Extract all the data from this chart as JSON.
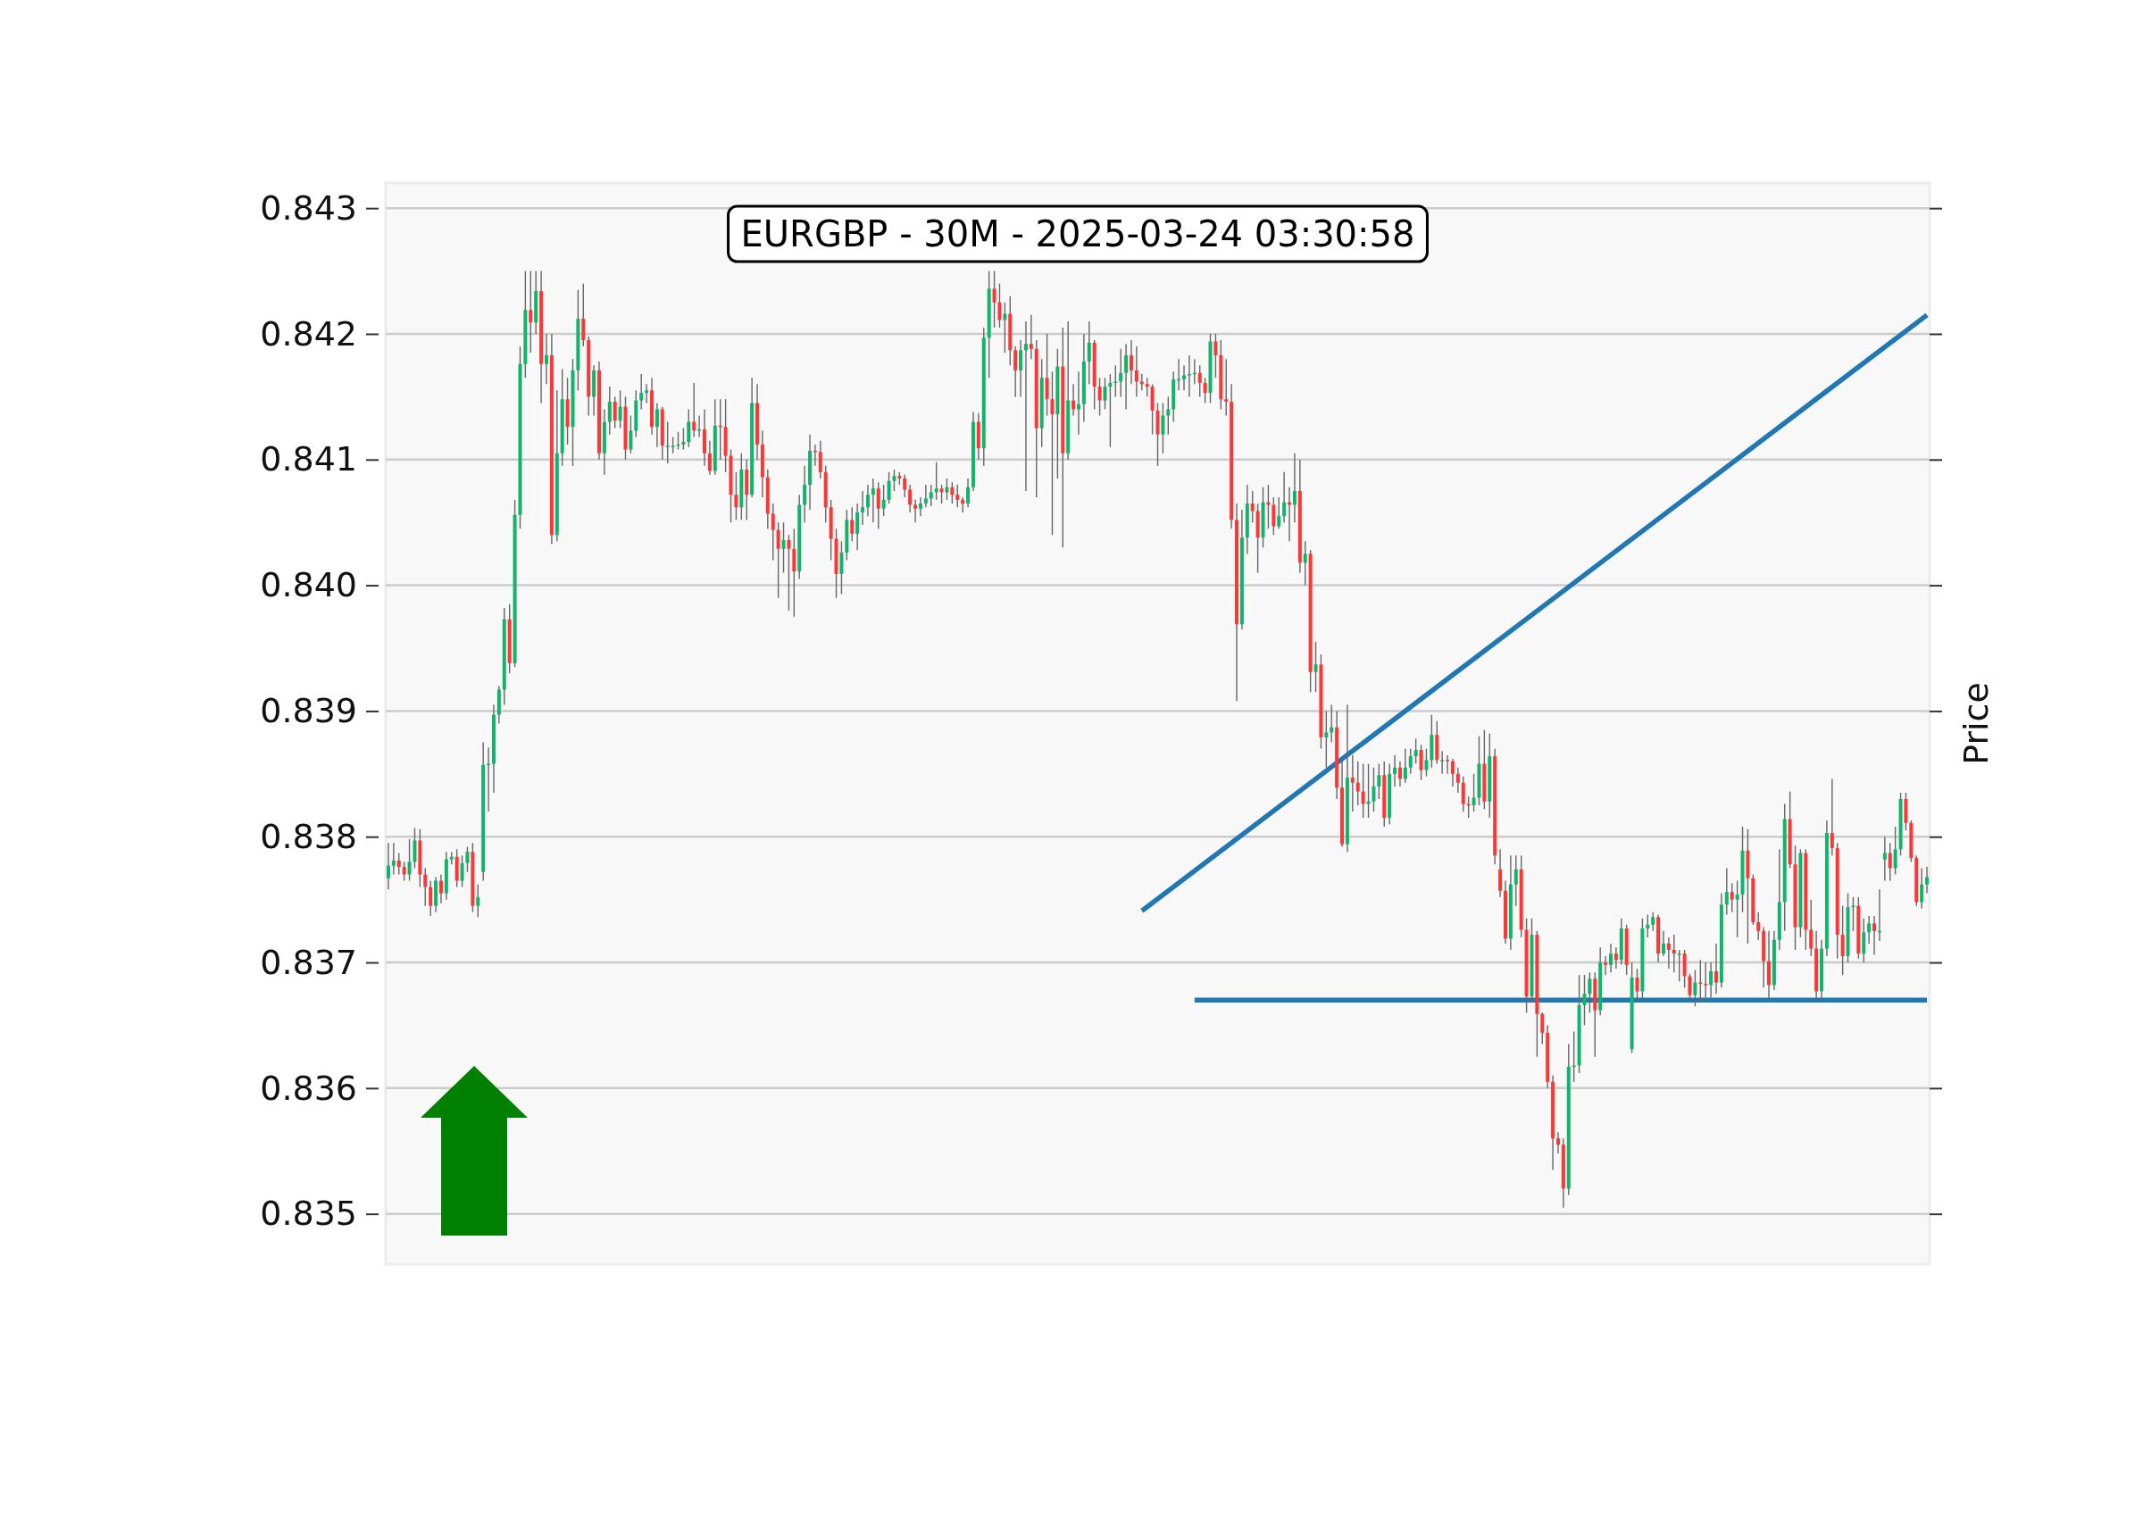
{
  "chart_data": {
    "type": "candlestick",
    "title": "EURGBP - 30M - 2025-03-24 03:30:58",
    "ylabel": "Price",
    "categories": [
      null,
      null,
      null,
      null,
      null,
      null,
      null,
      null,
      null,
      null,
      null,
      null,
      null,
      null,
      null,
      null,
      null,
      null,
      null,
      null,
      null,
      null,
      null,
      null,
      null,
      null,
      null,
      null,
      null,
      null,
      null,
      null,
      null,
      null,
      null,
      null,
      null,
      null,
      null,
      null,
      null,
      null,
      null,
      null,
      null,
      null,
      null,
      null,
      null,
      null,
      null,
      null,
      null,
      null,
      null,
      null,
      null,
      null,
      null,
      null,
      null,
      null,
      null,
      null,
      null,
      null,
      null,
      null,
      null,
      null,
      null,
      null,
      null,
      null,
      null,
      null,
      null,
      null,
      null,
      null,
      null,
      null,
      null,
      null,
      null,
      null,
      null,
      null,
      null,
      null,
      null,
      null,
      null,
      null,
      null,
      null,
      null,
      null,
      null,
      null,
      null,
      null,
      null,
      null,
      null,
      null,
      null,
      null,
      null,
      null,
      null,
      null,
      null,
      null,
      null,
      null,
      null,
      null,
      null,
      null,
      null,
      null,
      null,
      null,
      null,
      null,
      null,
      null,
      null,
      null,
      null,
      null,
      null,
      null,
      null,
      null,
      null,
      null,
      null,
      null,
      null,
      null,
      null,
      null,
      null,
      null,
      null,
      null,
      null,
      null,
      null,
      null,
      null,
      null,
      null,
      null,
      null,
      null,
      null,
      null,
      null,
      null,
      null,
      null,
      null,
      null,
      null,
      null,
      null,
      null,
      null,
      null,
      null,
      null,
      null,
      null,
      null,
      null,
      null,
      null,
      null,
      null,
      null,
      null,
      null,
      null,
      null,
      null,
      null,
      null,
      null,
      null,
      null,
      null,
      null,
      null,
      null,
      null,
      null,
      null,
      null,
      null,
      null,
      null,
      null,
      null,
      null,
      null,
      null,
      null,
      null,
      null,
      null,
      null,
      null,
      null,
      null,
      null,
      null,
      null,
      null,
      null,
      null,
      null,
      null,
      null,
      null,
      null,
      null,
      null,
      null,
      null,
      null,
      null,
      null,
      null,
      null,
      null,
      null,
      null,
      null,
      null,
      null,
      null,
      null,
      null,
      null,
      null,
      null,
      null,
      null,
      null,
      null,
      null,
      null,
      null,
      null,
      null,
      null,
      null,
      null,
      null,
      null,
      null,
      null,
      null,
      null,
      null,
      null,
      null,
      null,
      null,
      null,
      null,
      null,
      null,
      null,
      null,
      null,
      null,
      null,
      null,
      null,
      null,
      null,
      null,
      null,
      null,
      null,
      null,
      null,
      null,
      null
    ],
    "ohlc": [
      [
        0.83767,
        0.83795,
        0.83758,
        0.83777
      ],
      [
        0.83777,
        0.83795,
        0.8377,
        0.83781
      ],
      [
        0.83781,
        0.83787,
        0.8377,
        0.83776
      ],
      [
        0.83776,
        0.8378,
        0.83765,
        0.8377
      ],
      [
        0.8377,
        0.83798,
        0.83765,
        0.8378
      ],
      [
        0.8378,
        0.83807,
        0.83775,
        0.83797
      ],
      [
        0.83797,
        0.83806,
        0.8376,
        0.8377
      ],
      [
        0.8377,
        0.83775,
        0.83745,
        0.8376
      ],
      [
        0.8376,
        0.83765,
        0.83737,
        0.83745
      ],
      [
        0.83745,
        0.83768,
        0.8374,
        0.83765
      ],
      [
        0.83765,
        0.8377,
        0.83747,
        0.83755
      ],
      [
        0.83755,
        0.83788,
        0.8375,
        0.83782
      ],
      [
        0.83782,
        0.83788,
        0.83778,
        0.83784
      ],
      [
        0.83784,
        0.8379,
        0.8376,
        0.83765
      ],
      [
        0.83765,
        0.83785,
        0.8376,
        0.83779
      ],
      [
        0.83779,
        0.83792,
        0.83772,
        0.83788
      ],
      [
        0.83788,
        0.83795,
        0.8374,
        0.83745
      ],
      [
        0.83745,
        0.83762,
        0.83736,
        0.83752
      ],
      [
        0.83772,
        0.83875,
        0.83765,
        0.83857
      ],
      [
        0.83857,
        0.83871,
        0.8382,
        0.83858
      ],
      [
        0.83858,
        0.83905,
        0.83835,
        0.83897
      ],
      [
        0.83897,
        0.8392,
        0.8389,
        0.83917
      ],
      [
        0.83917,
        0.83982,
        0.83905,
        0.83973
      ],
      [
        0.83973,
        0.83985,
        0.8393,
        0.83938
      ],
      [
        0.83938,
        0.84068,
        0.83935,
        0.84056
      ],
      [
        0.84056,
        0.8419,
        0.84045,
        0.84176
      ],
      [
        0.84176,
        0.8425,
        0.84165,
        0.84219
      ],
      [
        0.84219,
        0.8425,
        0.84185,
        0.84209
      ],
      [
        0.84209,
        0.8425,
        0.842,
        0.84234
      ],
      [
        0.84234,
        0.8425,
        0.84145,
        0.84176
      ],
      [
        0.84176,
        0.842,
        0.8416,
        0.84183
      ],
      [
        0.84183,
        0.842,
        0.84033,
        0.8404
      ],
      [
        0.8404,
        0.84155,
        0.84035,
        0.84105
      ],
      [
        0.84105,
        0.84172,
        0.84095,
        0.84148
      ],
      [
        0.84148,
        0.84165,
        0.84112,
        0.84126
      ],
      [
        0.84126,
        0.8418,
        0.84095,
        0.84171
      ],
      [
        0.84171,
        0.84235,
        0.84155,
        0.84212
      ],
      [
        0.84212,
        0.8424,
        0.8419,
        0.84195
      ],
      [
        0.84195,
        0.84198,
        0.84135,
        0.8415
      ],
      [
        0.8415,
        0.84175,
        0.84135,
        0.84171
      ],
      [
        0.84171,
        0.84178,
        0.841,
        0.84105
      ],
      [
        0.84105,
        0.8414,
        0.84088,
        0.8413
      ],
      [
        0.8413,
        0.84158,
        0.8412,
        0.84146
      ],
      [
        0.84146,
        0.8415,
        0.84125,
        0.84131
      ],
      [
        0.84131,
        0.84155,
        0.84125,
        0.84142
      ],
      [
        0.84142,
        0.8415,
        0.841,
        0.84108
      ],
      [
        0.84108,
        0.84135,
        0.84105,
        0.84123
      ],
      [
        0.84123,
        0.84155,
        0.84118,
        0.84147
      ],
      [
        0.84147,
        0.84168,
        0.8414,
        0.84153
      ],
      [
        0.84153,
        0.8416,
        0.84145,
        0.84155
      ],
      [
        0.84155,
        0.84165,
        0.8412,
        0.84126
      ],
      [
        0.84126,
        0.84145,
        0.8411,
        0.8414
      ],
      [
        0.8414,
        0.84142,
        0.841,
        0.84111
      ],
      [
        0.84111,
        0.8413,
        0.84097,
        0.84111
      ],
      [
        0.84111,
        0.84118,
        0.84105,
        0.84111
      ],
      [
        0.84111,
        0.84122,
        0.84108,
        0.84112
      ],
      [
        0.84112,
        0.84125,
        0.84108,
        0.84114
      ],
      [
        0.84114,
        0.8414,
        0.8411,
        0.8413
      ],
      [
        0.8413,
        0.84161,
        0.84118,
        0.84123
      ],
      [
        0.84123,
        0.84135,
        0.84118,
        0.84124
      ],
      [
        0.84124,
        0.8414,
        0.84095,
        0.84105
      ],
      [
        0.84105,
        0.84115,
        0.84088,
        0.84091
      ],
      [
        0.84091,
        0.84148,
        0.84088,
        0.84127
      ],
      [
        0.84127,
        0.84148,
        0.841,
        0.84126
      ],
      [
        0.84126,
        0.84148,
        0.8409,
        0.84103
      ],
      [
        0.84103,
        0.84108,
        0.8405,
        0.84072
      ],
      [
        0.84072,
        0.8409,
        0.84052,
        0.84062
      ],
      [
        0.84062,
        0.84105,
        0.84052,
        0.84092
      ],
      [
        0.84092,
        0.841,
        0.84052,
        0.84072
      ],
      [
        0.84072,
        0.84165,
        0.8407,
        0.84145
      ],
      [
        0.84145,
        0.8416,
        0.841,
        0.84112
      ],
      [
        0.84112,
        0.84123,
        0.8407,
        0.84086
      ],
      [
        0.84086,
        0.84092,
        0.84045,
        0.84057
      ],
      [
        0.84057,
        0.84065,
        0.8402,
        0.84044
      ],
      [
        0.84044,
        0.8405,
        0.8399,
        0.84029
      ],
      [
        0.84029,
        0.8405,
        0.8401,
        0.84036
      ],
      [
        0.84036,
        0.8404,
        0.8398,
        0.84029
      ],
      [
        0.84029,
        0.84045,
        0.83975,
        0.84011
      ],
      [
        0.84011,
        0.84072,
        0.84005,
        0.84064
      ],
      [
        0.84064,
        0.84095,
        0.8405,
        0.8408
      ],
      [
        0.8408,
        0.8412,
        0.8406,
        0.84107
      ],
      [
        0.84107,
        0.84112,
        0.84095,
        0.84106
      ],
      [
        0.84106,
        0.84115,
        0.84085,
        0.8409
      ],
      [
        0.8409,
        0.84095,
        0.8405,
        0.84062
      ],
      [
        0.84062,
        0.84068,
        0.8402,
        0.84037
      ],
      [
        0.84037,
        0.84045,
        0.8399,
        0.84009
      ],
      [
        0.84009,
        0.84035,
        0.83993,
        0.84026
      ],
      [
        0.84026,
        0.8406,
        0.8402,
        0.84052
      ],
      [
        0.84052,
        0.84062,
        0.84035,
        0.84041
      ],
      [
        0.84041,
        0.84065,
        0.84028,
        0.84058
      ],
      [
        0.84058,
        0.84075,
        0.84048,
        0.84062
      ],
      [
        0.84062,
        0.8408,
        0.84055,
        0.84072
      ],
      [
        0.84072,
        0.84085,
        0.8405,
        0.84077
      ],
      [
        0.84077,
        0.84082,
        0.84045,
        0.84061
      ],
      [
        0.84061,
        0.8408,
        0.84055,
        0.84068
      ],
      [
        0.84068,
        0.8409,
        0.84065,
        0.84083
      ],
      [
        0.84083,
        0.84092,
        0.84075,
        0.84087
      ],
      [
        0.84087,
        0.8409,
        0.8408,
        0.84085
      ],
      [
        0.84085,
        0.84088,
        0.8407,
        0.84076
      ],
      [
        0.84076,
        0.8408,
        0.84058,
        0.84064
      ],
      [
        0.84064,
        0.84068,
        0.8405,
        0.84061
      ],
      [
        0.84061,
        0.8407,
        0.84055,
        0.84065
      ],
      [
        0.84065,
        0.8408,
        0.84062,
        0.84069
      ],
      [
        0.84069,
        0.8408,
        0.84063,
        0.84074
      ],
      [
        0.84074,
        0.84098,
        0.84068,
        0.84077
      ],
      [
        0.84077,
        0.8408,
        0.84065,
        0.84074
      ],
      [
        0.84074,
        0.84085,
        0.84068,
        0.84078
      ],
      [
        0.84078,
        0.84082,
        0.84065,
        0.84072
      ],
      [
        0.84072,
        0.8408,
        0.84062,
        0.84068
      ],
      [
        0.84068,
        0.8407,
        0.84058,
        0.84065
      ],
      [
        0.84065,
        0.84085,
        0.84062,
        0.84078
      ],
      [
        0.84078,
        0.84138,
        0.84075,
        0.8413
      ],
      [
        0.8413,
        0.84137,
        0.841,
        0.84109
      ],
      [
        0.84109,
        0.84205,
        0.84095,
        0.84197
      ],
      [
        0.84197,
        0.8425,
        0.84165,
        0.84236
      ],
      [
        0.84236,
        0.8425,
        0.84205,
        0.84225
      ],
      [
        0.84225,
        0.8424,
        0.84205,
        0.84211
      ],
      [
        0.84211,
        0.84225,
        0.84185,
        0.84216
      ],
      [
        0.84216,
        0.8423,
        0.84175,
        0.84187
      ],
      [
        0.84187,
        0.8419,
        0.8415,
        0.84171
      ],
      [
        0.84171,
        0.84195,
        0.8415,
        0.84187
      ],
      [
        0.84187,
        0.8421,
        0.84075,
        0.84192
      ],
      [
        0.84192,
        0.84215,
        0.8418,
        0.84188
      ],
      [
        0.84188,
        0.84195,
        0.8407,
        0.84125
      ],
      [
        0.84125,
        0.8418,
        0.8411,
        0.84165
      ],
      [
        0.84165,
        0.842,
        0.84135,
        0.84148
      ],
      [
        0.84148,
        0.8417,
        0.8404,
        0.84136
      ],
      [
        0.84136,
        0.84188,
        0.84085,
        0.84174
      ],
      [
        0.84174,
        0.84205,
        0.8403,
        0.84105
      ],
      [
        0.84105,
        0.8421,
        0.841,
        0.84147
      ],
      [
        0.84147,
        0.8416,
        0.84135,
        0.8414
      ],
      [
        0.8414,
        0.8417,
        0.8412,
        0.84144
      ],
      [
        0.84144,
        0.842,
        0.8413,
        0.84178
      ],
      [
        0.84178,
        0.8421,
        0.8416,
        0.84193
      ],
      [
        0.84193,
        0.84195,
        0.8414,
        0.84158
      ],
      [
        0.84158,
        0.84165,
        0.84135,
        0.84147
      ],
      [
        0.84147,
        0.84165,
        0.8414,
        0.84158
      ],
      [
        0.84158,
        0.84168,
        0.8411,
        0.84161
      ],
      [
        0.84161,
        0.84175,
        0.8415,
        0.84162
      ],
      [
        0.84162,
        0.84188,
        0.8415,
        0.84169
      ],
      [
        0.84169,
        0.84192,
        0.8414,
        0.84183
      ],
      [
        0.84183,
        0.84195,
        0.8416,
        0.84171
      ],
      [
        0.84171,
        0.8419,
        0.8415,
        0.84162
      ],
      [
        0.84162,
        0.84168,
        0.84155,
        0.8416
      ],
      [
        0.8416,
        0.84165,
        0.8415,
        0.84158
      ],
      [
        0.84158,
        0.8416,
        0.8412,
        0.84139
      ],
      [
        0.84139,
        0.84145,
        0.84095,
        0.8412
      ],
      [
        0.8412,
        0.84145,
        0.84105,
        0.84135
      ],
      [
        0.84135,
        0.8415,
        0.8412,
        0.8414
      ],
      [
        0.8414,
        0.8417,
        0.8413,
        0.84164
      ],
      [
        0.84164,
        0.8418,
        0.84155,
        0.84164
      ],
      [
        0.84164,
        0.84175,
        0.84155,
        0.84167
      ],
      [
        0.84167,
        0.84183,
        0.8415,
        0.84168
      ],
      [
        0.84168,
        0.8418,
        0.8416,
        0.84169
      ],
      [
        0.84169,
        0.84175,
        0.8415,
        0.84161
      ],
      [
        0.84161,
        0.84165,
        0.84145,
        0.84153
      ],
      [
        0.84153,
        0.842,
        0.84145,
        0.84194
      ],
      [
        0.84194,
        0.842,
        0.84165,
        0.84183
      ],
      [
        0.84183,
        0.84195,
        0.8414,
        0.84148
      ],
      [
        0.84148,
        0.8418,
        0.84135,
        0.84146
      ],
      [
        0.84146,
        0.8416,
        0.84045,
        0.84052
      ],
      [
        0.84052,
        0.84065,
        0.83908,
        0.83969
      ],
      [
        0.83969,
        0.8406,
        0.83965,
        0.84038
      ],
      [
        0.84038,
        0.8408,
        0.84025,
        0.84065
      ],
      [
        0.84065,
        0.84075,
        0.8405,
        0.84059
      ],
      [
        0.84059,
        0.84065,
        0.8401,
        0.84038
      ],
      [
        0.84038,
        0.84078,
        0.8403,
        0.84066
      ],
      [
        0.84066,
        0.8408,
        0.84045,
        0.84064
      ],
      [
        0.84064,
        0.8407,
        0.8404,
        0.84047
      ],
      [
        0.84047,
        0.8407,
        0.84045,
        0.84055
      ],
      [
        0.84055,
        0.8409,
        0.8405,
        0.84066
      ],
      [
        0.84066,
        0.84078,
        0.84035,
        0.84064
      ],
      [
        0.84064,
        0.84105,
        0.8405,
        0.84075
      ],
      [
        0.84075,
        0.841,
        0.8401,
        0.84018
      ],
      [
        0.84018,
        0.84035,
        0.84,
        0.84025
      ],
      [
        0.84025,
        0.84028,
        0.83915,
        0.83931
      ],
      [
        0.83931,
        0.83955,
        0.83915,
        0.83937
      ],
      [
        0.83937,
        0.83945,
        0.8387,
        0.83879
      ],
      [
        0.83879,
        0.839,
        0.83855,
        0.83883
      ],
      [
        0.83883,
        0.83905,
        0.83875,
        0.83887
      ],
      [
        0.83887,
        0.839,
        0.8383,
        0.83839
      ],
      [
        0.83839,
        0.8386,
        0.83792,
        0.83794
      ],
      [
        0.83794,
        0.83905,
        0.83788,
        0.83847
      ],
      [
        0.83847,
        0.83865,
        0.8382,
        0.83843
      ],
      [
        0.83843,
        0.8386,
        0.83825,
        0.83836
      ],
      [
        0.83836,
        0.83858,
        0.83815,
        0.83826
      ],
      [
        0.83826,
        0.83858,
        0.83815,
        0.83828
      ],
      [
        0.83828,
        0.83855,
        0.8382,
        0.8384
      ],
      [
        0.8384,
        0.83858,
        0.8383,
        0.83849
      ],
      [
        0.83849,
        0.8386,
        0.83808,
        0.83815
      ],
      [
        0.83815,
        0.83858,
        0.8381,
        0.8385
      ],
      [
        0.8385,
        0.83865,
        0.8384,
        0.83855
      ],
      [
        0.83855,
        0.8386,
        0.8384,
        0.83846
      ],
      [
        0.83846,
        0.8387,
        0.83843,
        0.83855
      ],
      [
        0.83855,
        0.8387,
        0.8385,
        0.83864
      ],
      [
        0.83864,
        0.83878,
        0.83858,
        0.83869
      ],
      [
        0.83869,
        0.83873,
        0.83845,
        0.83853
      ],
      [
        0.83853,
        0.8387,
        0.83848,
        0.83861
      ],
      [
        0.83861,
        0.83897,
        0.83855,
        0.83881
      ],
      [
        0.83881,
        0.83892,
        0.83858,
        0.83861
      ],
      [
        0.83861,
        0.83868,
        0.8385,
        0.83861
      ],
      [
        0.83861,
        0.83865,
        0.8385,
        0.8386
      ],
      [
        0.8386,
        0.83862,
        0.8384,
        0.8385
      ],
      [
        0.8385,
        0.83855,
        0.83835,
        0.83843
      ],
      [
        0.83843,
        0.83848,
        0.8382,
        0.83826
      ],
      [
        0.83826,
        0.83832,
        0.83815,
        0.83825
      ],
      [
        0.83825,
        0.8385,
        0.8382,
        0.83831
      ],
      [
        0.83831,
        0.8388,
        0.83825,
        0.83858
      ],
      [
        0.83858,
        0.83885,
        0.83822,
        0.83828
      ],
      [
        0.83828,
        0.83882,
        0.83815,
        0.83864
      ],
      [
        0.83864,
        0.8387,
        0.83778,
        0.83785
      ],
      [
        0.83774,
        0.8379,
        0.83752,
        0.83757
      ],
      [
        0.83757,
        0.83765,
        0.83715,
        0.83719
      ],
      [
        0.83719,
        0.83785,
        0.8371,
        0.83762
      ],
      [
        0.83762,
        0.83785,
        0.83745,
        0.83774
      ],
      [
        0.83774,
        0.83785,
        0.8372,
        0.83726
      ],
      [
        0.83726,
        0.83735,
        0.8366,
        0.83673
      ],
      [
        0.83673,
        0.83735,
        0.83668,
        0.83722
      ],
      [
        0.83722,
        0.83725,
        0.83625,
        0.83659
      ],
      [
        0.83659,
        0.8366,
        0.83635,
        0.83644
      ],
      [
        0.83644,
        0.8365,
        0.836,
        0.83605
      ],
      [
        0.83605,
        0.8361,
        0.83535,
        0.8356
      ],
      [
        0.8356,
        0.83565,
        0.83548,
        0.83555
      ],
      [
        0.83555,
        0.8356,
        0.83505,
        0.8352
      ],
      [
        0.8352,
        0.83635,
        0.83515,
        0.83617
      ],
      [
        0.83617,
        0.83645,
        0.83605,
        0.83618
      ],
      [
        0.83618,
        0.8369,
        0.83612,
        0.83666
      ],
      [
        0.83666,
        0.8369,
        0.8365,
        0.83675
      ],
      [
        0.83675,
        0.83692,
        0.8366,
        0.83687
      ],
      [
        0.83687,
        0.83692,
        0.83625,
        0.83662
      ],
      [
        0.83662,
        0.83712,
        0.83658,
        0.837
      ],
      [
        0.837,
        0.83705,
        0.8369,
        0.83698
      ],
      [
        0.83698,
        0.83715,
        0.83692,
        0.83707
      ],
      [
        0.83707,
        0.83712,
        0.83695,
        0.83702
      ],
      [
        0.83702,
        0.83735,
        0.83698,
        0.83727
      ],
      [
        0.83727,
        0.8373,
        0.8369,
        0.83698
      ],
      [
        0.83631,
        0.837,
        0.83628,
        0.83688
      ],
      [
        0.83688,
        0.83695,
        0.8367,
        0.83677
      ],
      [
        0.83677,
        0.83735,
        0.8367,
        0.83727
      ],
      [
        0.83727,
        0.83738,
        0.8372,
        0.8373
      ],
      [
        0.8373,
        0.8374,
        0.83725,
        0.83736
      ],
      [
        0.83736,
        0.83738,
        0.837,
        0.83707
      ],
      [
        0.83707,
        0.83725,
        0.83705,
        0.83715
      ],
      [
        0.83715,
        0.8372,
        0.83695,
        0.8371
      ],
      [
        0.8371,
        0.83722,
        0.83692,
        0.83707
      ],
      [
        0.83707,
        0.8371,
        0.83685,
        0.83707
      ],
      [
        0.83707,
        0.8371,
        0.8368,
        0.83689
      ],
      [
        0.83689,
        0.83691,
        0.8367,
        0.83674
      ],
      [
        0.83674,
        0.83694,
        0.83665,
        0.83684
      ],
      [
        0.83684,
        0.83702,
        0.83668,
        0.83683
      ],
      [
        0.83683,
        0.837,
        0.8367,
        0.83682
      ],
      [
        0.83682,
        0.837,
        0.83672,
        0.83693
      ],
      [
        0.83693,
        0.83715,
        0.83675,
        0.83684
      ],
      [
        0.83684,
        0.83755,
        0.8368,
        0.83746
      ],
      [
        0.83746,
        0.83775,
        0.83738,
        0.83756
      ],
      [
        0.83756,
        0.83763,
        0.8374,
        0.8375
      ],
      [
        0.8375,
        0.83765,
        0.8372,
        0.83754
      ],
      [
        0.83754,
        0.83808,
        0.8374,
        0.83789
      ],
      [
        0.83789,
        0.83806,
        0.83715,
        0.83767
      ],
      [
        0.83767,
        0.8377,
        0.8373,
        0.83732
      ],
      [
        0.83732,
        0.8374,
        0.83718,
        0.83725
      ],
      [
        0.83725,
        0.83728,
        0.8368,
        0.83701
      ],
      [
        0.83701,
        0.83725,
        0.8367,
        0.83682
      ],
      [
        0.83682,
        0.83725,
        0.83678,
        0.83718
      ],
      [
        0.83718,
        0.8379,
        0.8371,
        0.83748
      ],
      [
        0.83748,
        0.83826,
        0.83725,
        0.83814
      ],
      [
        0.83814,
        0.83836,
        0.83775,
        0.83778
      ],
      [
        0.83778,
        0.83793,
        0.8371,
        0.83728
      ],
      [
        0.83728,
        0.8379,
        0.8372,
        0.83787
      ],
      [
        0.83787,
        0.8379,
        0.8371,
        0.83726
      ],
      [
        0.83726,
        0.8375,
        0.83705,
        0.83711
      ],
      [
        0.83711,
        0.83725,
        0.8367,
        0.83677
      ],
      [
        0.83677,
        0.83718,
        0.8367,
        0.83711
      ],
      [
        0.83711,
        0.83813,
        0.83705,
        0.83803
      ],
      [
        0.83803,
        0.83846,
        0.83785,
        0.83791
      ],
      [
        0.83791,
        0.83795,
        0.83703,
        0.83722
      ],
      [
        0.83722,
        0.83745,
        0.8369,
        0.83705
      ],
      [
        0.83705,
        0.83755,
        0.837,
        0.83744
      ],
      [
        0.83744,
        0.83752,
        0.83725,
        0.83745
      ],
      [
        0.83745,
        0.83752,
        0.83703,
        0.83707
      ],
      [
        0.83707,
        0.83735,
        0.837,
        0.83724
      ],
      [
        0.83724,
        0.83737,
        0.83715,
        0.83731
      ],
      [
        0.83731,
        0.83737,
        0.83706,
        0.83725
      ],
      [
        0.83725,
        0.83758,
        0.83717,
        0.83725
      ],
      [
        0.83782,
        0.838,
        0.83765,
        0.83787
      ],
      [
        0.83787,
        0.83795,
        0.83765,
        0.83775
      ],
      [
        0.83775,
        0.83808,
        0.8377,
        0.8379
      ],
      [
        0.8379,
        0.83835,
        0.83785,
        0.8383
      ],
      [
        0.8383,
        0.83835,
        0.83805,
        0.83811
      ],
      [
        0.83811,
        0.83813,
        0.8378,
        0.83783
      ],
      [
        0.83783,
        0.83785,
        0.83745,
        0.83748
      ],
      [
        0.83748,
        0.83775,
        0.83743,
        0.83762
      ],
      [
        0.83762,
        0.83776,
        0.83755,
        0.83768
      ]
    ],
    "series": [
      {
        "type": "line",
        "color": "#1f77b4",
        "values": [
          null,
          null,
          null,
          null,
          null,
          null,
          null,
          null,
          null,
          null,
          null,
          null,
          null,
          null,
          null,
          null,
          null,
          null,
          null,
          null,
          null,
          null,
          null,
          null,
          null,
          null,
          null,
          null,
          null,
          null,
          null,
          null,
          null,
          null,
          null,
          null,
          null,
          null,
          null,
          null,
          null,
          null,
          null,
          null,
          null,
          null,
          null,
          null,
          null,
          null,
          null,
          null,
          null,
          null,
          null,
          null,
          null,
          null,
          null,
          null,
          null,
          null,
          null,
          null,
          null,
          null,
          null,
          null,
          null,
          null,
          null,
          null,
          null,
          null,
          null,
          null,
          null,
          null,
          null,
          null,
          null,
          null,
          null,
          null,
          null,
          null,
          null,
          null,
          null,
          null,
          null,
          null,
          null,
          null,
          null,
          null,
          null,
          null,
          null,
          null,
          null,
          null,
          null,
          null,
          null,
          null,
          null,
          null,
          null,
          null,
          null,
          null,
          null,
          null,
          null,
          null,
          null,
          null,
          null,
          null,
          null,
          null,
          null,
          null,
          null,
          null,
          null,
          null,
          null,
          null,
          null,
          null,
          null,
          null,
          null,
          null,
          null,
          null,
          null,
          null,
          null,
          null,
          null,
          0.83741,
          null,
          null,
          null,
          null,
          null,
          null,
          null,
          null,
          null,
          null,
          null,
          null,
          null,
          null,
          null,
          null,
          null,
          null,
          null,
          null,
          null,
          null,
          null,
          null,
          null,
          null,
          null,
          null,
          null,
          null,
          null,
          null,
          null,
          null,
          null,
          null,
          null,
          null,
          null,
          null,
          null,
          null,
          null,
          null,
          null,
          null,
          null,
          null,
          null,
          null,
          null,
          null,
          null,
          null,
          null,
          null,
          null,
          null,
          null,
          null,
          null,
          null,
          null,
          null,
          null,
          null,
          null,
          null,
          null,
          null,
          null,
          null,
          null,
          null,
          null,
          null,
          null,
          null,
          null,
          null,
          null,
          null,
          null,
          null,
          null,
          null,
          null,
          null,
          null,
          null,
          null,
          null,
          null,
          null,
          null,
          null,
          null,
          null,
          null,
          null,
          null,
          null,
          null,
          null,
          null,
          null,
          null,
          null,
          null,
          null,
          null,
          null,
          null,
          null,
          null,
          null,
          null,
          null,
          null,
          null,
          null,
          null,
          null,
          null,
          null,
          null,
          null,
          null,
          null,
          null,
          null,
          null,
          null,
          null,
          null,
          null,
          null,
          null,
          null,
          null,
          null,
          null,
          null,
          null,
          null,
          null,
          null,
          null,
          0.84215
        ]
      },
      {
        "type": "line",
        "color": "#1f77b4",
        "values": [
          null,
          null,
          null,
          null,
          null,
          null,
          null,
          null,
          null,
          null,
          null,
          null,
          null,
          null,
          null,
          null,
          null,
          null,
          null,
          null,
          null,
          null,
          null,
          null,
          null,
          null,
          null,
          null,
          null,
          null,
          null,
          null,
          null,
          null,
          null,
          null,
          null,
          null,
          null,
          null,
          null,
          null,
          null,
          null,
          null,
          null,
          null,
          null,
          null,
          null,
          null,
          null,
          null,
          null,
          null,
          null,
          null,
          null,
          null,
          null,
          null,
          null,
          null,
          null,
          null,
          null,
          null,
          null,
          null,
          null,
          null,
          null,
          null,
          null,
          null,
          null,
          null,
          null,
          null,
          null,
          null,
          null,
          null,
          null,
          null,
          null,
          null,
          null,
          null,
          null,
          null,
          null,
          null,
          null,
          null,
          null,
          null,
          null,
          null,
          null,
          null,
          null,
          null,
          null,
          null,
          null,
          null,
          null,
          null,
          null,
          null,
          null,
          null,
          null,
          null,
          null,
          null,
          null,
          null,
          null,
          null,
          null,
          null,
          null,
          null,
          null,
          null,
          null,
          null,
          null,
          null,
          null,
          null,
          null,
          null,
          null,
          null,
          null,
          null,
          null,
          null,
          null,
          null,
          null,
          null,
          null,
          null,
          null,
          null,
          null,
          null,
          null,
          null,
          0.8367,
          null,
          null,
          null,
          null,
          null,
          null,
          null,
          null,
          null,
          null,
          null,
          null,
          null,
          null,
          null,
          null,
          null,
          null,
          null,
          null,
          null,
          null,
          null,
          null,
          null,
          null,
          null,
          null,
          null,
          null,
          null,
          null,
          null,
          null,
          null,
          null,
          null,
          null,
          null,
          null,
          null,
          null,
          null,
          null,
          null,
          null,
          null,
          null,
          null,
          null,
          null,
          null,
          null,
          null,
          null,
          null,
          null,
          null,
          null,
          null,
          null,
          null,
          null,
          null,
          null,
          null,
          null,
          null,
          null,
          null,
          null,
          null,
          null,
          null,
          null,
          null,
          null,
          null,
          null,
          null,
          null,
          null,
          null,
          null,
          null,
          null,
          null,
          null,
          null,
          null,
          null,
          null,
          null,
          null,
          null,
          null,
          null,
          null,
          null,
          null,
          null,
          null,
          null,
          null,
          null,
          null,
          null,
          null,
          null,
          null,
          null,
          null,
          null,
          null,
          null,
          null,
          null,
          null,
          null,
          null,
          null,
          null,
          null,
          null,
          null,
          null,
          null,
          null,
          null,
          null,
          null,
          null,
          null,
          null,
          null,
          null,
          null,
          null,
          0.8367
        ]
      }
    ],
    "ylim": [
      0.8346,
      0.8432
    ],
    "yticks": [
      0.835,
      0.836,
      0.837,
      0.838,
      0.839,
      {
        "value": 0.84,
        "label": "0.840"
      },
      0.841,
      0.842,
      0.843
    ],
    "grid": "y",
    "tick_labels": "y"
  }
}
